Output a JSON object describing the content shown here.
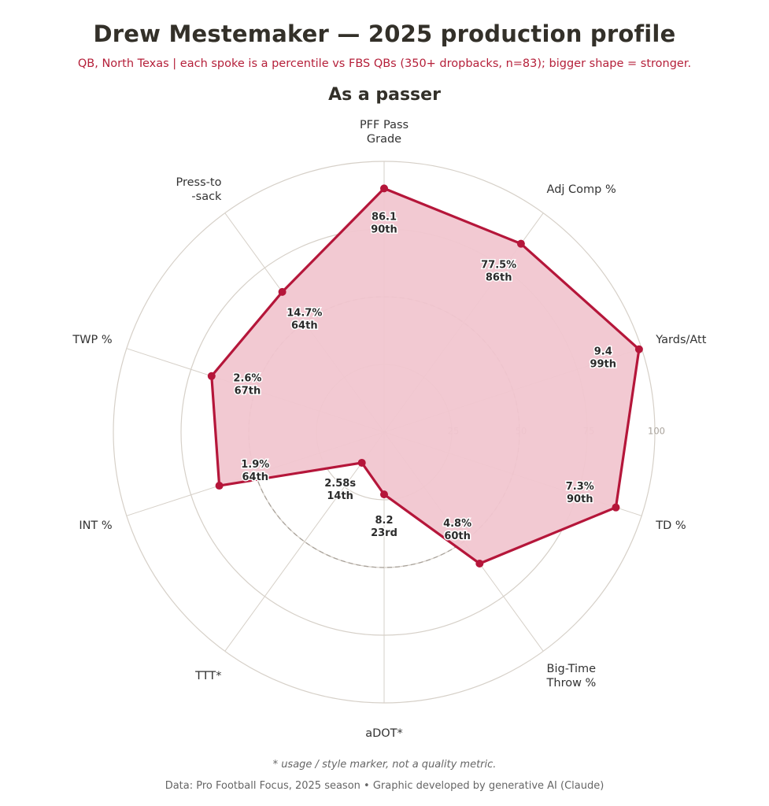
{
  "header": {
    "title": "Drew Mestemaker  —  2025 production profile",
    "subtitle": "QB, North Texas  |  each spoke is a percentile vs FBS QBs (350+ dropbacks, n=83); bigger shape = stronger.",
    "panel_title": "As a passer"
  },
  "chart_data": {
    "type": "radar",
    "title": "As a passer",
    "rlim": [
      0,
      100
    ],
    "r_ticks": [
      "25",
      "50",
      "75",
      "100"
    ],
    "reference_ring": 50,
    "grid": true,
    "axes": [
      {
        "label": [
          "PFF Pass",
          "Grade"
        ],
        "value": "86.1",
        "percentile": 90,
        "pct_label": "90th"
      },
      {
        "label": [
          "Adj Comp %"
        ],
        "value": "77.5%",
        "percentile": 86,
        "pct_label": "86th"
      },
      {
        "label": [
          "Yards/Att"
        ],
        "value": "9.4",
        "percentile": 99,
        "pct_label": "99th"
      },
      {
        "label": [
          "TD %"
        ],
        "value": "7.3%",
        "percentile": 90,
        "pct_label": "90th"
      },
      {
        "label": [
          "Big-Time",
          "Throw %"
        ],
        "value": "4.8%",
        "percentile": 60,
        "pct_label": "60th"
      },
      {
        "label": [
          "aDOT*"
        ],
        "value": "8.2",
        "percentile": 23,
        "pct_label": "23rd"
      },
      {
        "label": [
          "TTT*"
        ],
        "value": "2.58s",
        "percentile": 14,
        "pct_label": "14th"
      },
      {
        "label": [
          "INT %"
        ],
        "value": "1.9%",
        "percentile": 64,
        "pct_label": "64th"
      },
      {
        "label": [
          "TWP %"
        ],
        "value": "2.6%",
        "percentile": 67,
        "pct_label": "67th"
      },
      {
        "label": [
          "Press-to",
          "-sack"
        ],
        "value": "14.7%",
        "percentile": 64,
        "pct_label": "64th"
      }
    ],
    "colors": {
      "series": "#b5163a",
      "fill": "#f1c6d0",
      "grid": "#d6d0c8",
      "tick": "#a8a29a"
    }
  },
  "footer": {
    "footnote": "* usage / style marker, not a quality metric.",
    "source": "Data: Pro Football Focus, 2025 season   •   Graphic developed by generative AI (Claude)"
  }
}
